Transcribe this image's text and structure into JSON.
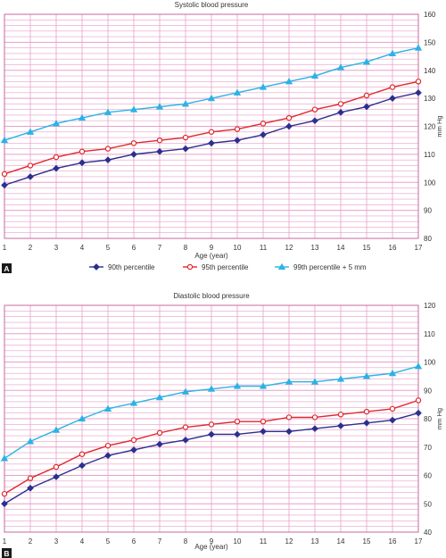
{
  "legend": {
    "items": [
      {
        "name": "90th percentile",
        "color": "#2b2f8f",
        "marker": "diamond"
      },
      {
        "name": "95th percentile",
        "color": "#e0282e",
        "marker": "circle-open"
      },
      {
        "name": "99th percentile + 5 mm",
        "color": "#2ab3e6",
        "marker": "triangle"
      }
    ]
  },
  "colors": {
    "grid": "#e8a0c8",
    "axis": "#c8679f"
  },
  "chart_data": [
    {
      "type": "line",
      "panel_label": "A",
      "title": "Systolic blood pressure",
      "xlabel": "Age (year)",
      "ylabel": "mm Hg",
      "x": [
        1,
        2,
        3,
        4,
        5,
        6,
        7,
        8,
        9,
        10,
        11,
        12,
        13,
        14,
        15,
        16,
        17
      ],
      "ylim": [
        80,
        160
      ],
      "yticks": [
        80,
        90,
        100,
        110,
        120,
        130,
        140,
        150,
        160
      ],
      "grid": true,
      "series": [
        {
          "name": "90th percentile",
          "color": "#2b2f8f",
          "marker": "diamond",
          "values": [
            99,
            102,
            105,
            107,
            108,
            110,
            111,
            112,
            114,
            115,
            117,
            120,
            122,
            125,
            127,
            130,
            132
          ]
        },
        {
          "name": "95th percentile",
          "color": "#e0282e",
          "marker": "circle-open",
          "values": [
            103,
            106,
            109,
            111,
            112,
            114,
            115,
            116,
            118,
            119,
            121,
            123,
            126,
            128,
            131,
            134,
            136
          ]
        },
        {
          "name": "99th percentile + 5 mm",
          "color": "#2ab3e6",
          "marker": "triangle",
          "values": [
            115,
            118,
            121,
            123,
            125,
            126,
            127,
            128,
            130,
            132,
            134,
            136,
            138,
            141,
            143,
            146,
            148
          ]
        }
      ]
    },
    {
      "type": "line",
      "panel_label": "B",
      "title": "Diastolic blood pressure",
      "xlabel": "Age (year)",
      "ylabel": "mm Hg",
      "x": [
        1,
        2,
        3,
        4,
        5,
        6,
        7,
        8,
        9,
        10,
        11,
        12,
        13,
        14,
        15,
        16,
        17
      ],
      "ylim": [
        40,
        120
      ],
      "yticks": [
        40,
        50,
        60,
        70,
        80,
        90,
        100,
        110,
        120
      ],
      "grid": true,
      "series": [
        {
          "name": "90th percentile",
          "color": "#2b2f8f",
          "marker": "diamond",
          "values": [
            50,
            55.5,
            59.5,
            63.5,
            67,
            69,
            71,
            72.5,
            74.5,
            74.5,
            75.5,
            75.5,
            76.5,
            77.5,
            78.5,
            79.5,
            82
          ]
        },
        {
          "name": "95th percentile",
          "color": "#e0282e",
          "marker": "circle-open",
          "values": [
            53.5,
            59,
            63,
            67.5,
            70.5,
            72.5,
            75,
            77,
            78,
            79,
            79,
            80.5,
            80.5,
            81.5,
            82.5,
            83.5,
            86.5
          ]
        },
        {
          "name": "99th percentile + 5 mm",
          "color": "#2ab3e6",
          "marker": "triangle",
          "values": [
            66,
            72,
            76,
            80,
            83.5,
            85.5,
            87.5,
            89.5,
            90.5,
            91.5,
            91.5,
            93,
            93,
            94,
            95,
            96,
            98.5
          ]
        }
      ]
    }
  ]
}
